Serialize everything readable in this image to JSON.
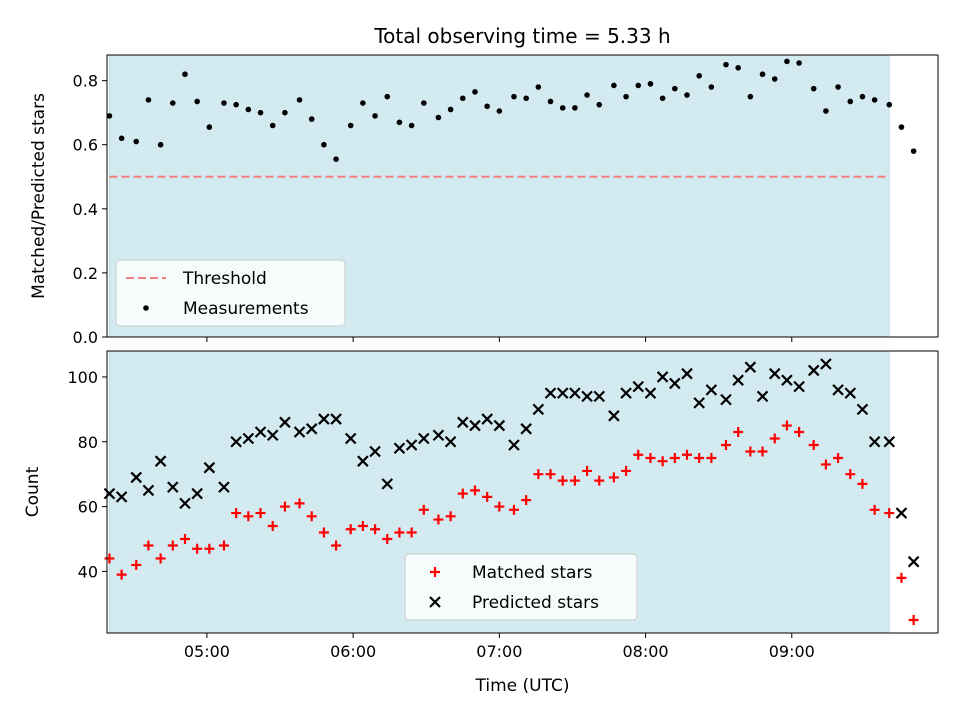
{
  "chart_data": [
    {
      "type": "scatter",
      "title": "Total observing time = 5.33 h",
      "xlabel": "",
      "ylabel": "Matched/Predicted stars",
      "ylim": [
        0,
        0.88
      ],
      "yticks": [
        0.0,
        0.2,
        0.4,
        0.6,
        0.8
      ],
      "ytick_labels": [
        "0.0",
        "0.2",
        "0.4",
        "0.6",
        "0.8"
      ],
      "xlim": [
        "04:29",
        "10:00"
      ],
      "observing_window": [
        "04:20",
        "09:40"
      ],
      "window_color": "#d3eaf0",
      "legend": {
        "placement": "lower-left",
        "entries": [
          {
            "label": "Threshold",
            "style": "dashed-line",
            "color": "#f08080"
          },
          {
            "label": "Measurements",
            "style": "dot",
            "color": "#000000"
          }
        ]
      },
      "threshold": {
        "name": "Threshold",
        "value": 0.5,
        "color": "#f08080"
      },
      "series": [
        {
          "name": "Measurements",
          "marker": "dot",
          "color": "#000000",
          "x": [
            "04:20",
            "04:25",
            "04:31",
            "04:36",
            "04:41",
            "04:46",
            "04:51",
            "04:56",
            "05:01",
            "05:07",
            "05:12",
            "05:17",
            "05:22",
            "05:27",
            "05:32",
            "05:38",
            "05:43",
            "05:48",
            "05:53",
            "05:59",
            "06:04",
            "06:09",
            "06:14",
            "06:19",
            "06:24",
            "06:29",
            "06:35",
            "06:40",
            "06:45",
            "06:50",
            "06:55",
            "07:00",
            "07:06",
            "07:11",
            "07:16",
            "07:21",
            "07:26",
            "07:31",
            "07:36",
            "07:41",
            "07:47",
            "07:52",
            "07:57",
            "08:02",
            "08:07",
            "08:12",
            "08:17",
            "08:22",
            "08:27",
            "08:33",
            "08:38",
            "08:43",
            "08:48",
            "08:53",
            "08:58",
            "09:03",
            "09:09",
            "09:14",
            "09:19",
            "09:24",
            "09:29",
            "09:34",
            "09:40"
          ],
          "y": [
            0.69,
            0.62,
            0.61,
            0.74,
            0.6,
            0.73,
            0.82,
            0.735,
            0.655,
            0.73,
            0.725,
            0.71,
            0.7,
            0.66,
            0.7,
            0.74,
            0.68,
            0.6,
            0.555,
            0.66,
            0.73,
            0.69,
            0.75,
            0.67,
            0.66,
            0.73,
            0.685,
            0.71,
            0.745,
            0.765,
            0.72,
            0.705,
            0.75,
            0.745,
            0.78,
            0.735,
            0.715,
            0.715,
            0.755,
            0.725,
            0.785,
            0.75,
            0.785,
            0.79,
            0.745,
            0.775,
            0.755,
            0.815,
            0.78,
            0.85,
            0.84,
            0.75,
            0.82,
            0.805,
            0.86,
            0.855,
            0.775,
            0.705,
            0.78,
            0.735,
            0.75,
            0.74,
            0.725
          ]
        },
        {
          "name": "Measurements",
          "marker": "dot",
          "color": "#000000",
          "x": [
            "09:45",
            "09:50"
          ],
          "y": [
            0.655,
            0.58
          ]
        }
      ]
    },
    {
      "type": "scatter",
      "title": "",
      "xlabel": "Time (UTC)",
      "ylabel": "Count",
      "ylim": [
        21,
        108
      ],
      "yticks": [
        40,
        60,
        80,
        100
      ],
      "ytick_labels": [
        "40",
        "60",
        "80",
        "100"
      ],
      "xlim": [
        "04:29",
        "10:00"
      ],
      "xticks": [
        "05:00",
        "06:00",
        "07:00",
        "08:00",
        "09:00"
      ],
      "xtick_labels": [
        "05:00",
        "06:00",
        "07:00",
        "08:00",
        "09:00"
      ],
      "observing_window": [
        "04:20",
        "09:40"
      ],
      "window_color": "#d3eaf0",
      "legend": {
        "placement": "lower-center",
        "entries": [
          {
            "label": "Matched stars",
            "style": "plus",
            "color": "#ff0000"
          },
          {
            "label": "Predicted stars",
            "style": "cross",
            "color": "#000000"
          }
        ]
      },
      "series": [
        {
          "name": "Matched stars",
          "marker": "plus",
          "color": "#ff0000",
          "x": [
            "04:20",
            "04:25",
            "04:31",
            "04:36",
            "04:41",
            "04:46",
            "04:51",
            "04:56",
            "05:01",
            "05:07",
            "05:12",
            "05:17",
            "05:22",
            "05:27",
            "05:32",
            "05:38",
            "05:43",
            "05:48",
            "05:53",
            "05:59",
            "06:04",
            "06:09",
            "06:14",
            "06:19",
            "06:24",
            "06:29",
            "06:35",
            "06:40",
            "06:45",
            "06:50",
            "06:55",
            "07:00",
            "07:06",
            "07:11",
            "07:16",
            "07:21",
            "07:26",
            "07:31",
            "07:36",
            "07:41",
            "07:47",
            "07:52",
            "07:57",
            "08:02",
            "08:07",
            "08:12",
            "08:17",
            "08:22",
            "08:27",
            "08:33",
            "08:38",
            "08:43",
            "08:48",
            "08:53",
            "08:58",
            "09:03",
            "09:09",
            "09:14",
            "09:19",
            "09:24",
            "09:29",
            "09:34",
            "09:40",
            "09:45",
            "09:50"
          ],
          "y": [
            44,
            39,
            42,
            48,
            44,
            48,
            50,
            47,
            47,
            48,
            58,
            57,
            58,
            54,
            60,
            61,
            57,
            52,
            48,
            53,
            54,
            53,
            50,
            52,
            52,
            59,
            56,
            57,
            64,
            65,
            63,
            60,
            59,
            62,
            70,
            70,
            68,
            68,
            71,
            68,
            69,
            71,
            76,
            75,
            74,
            75,
            76,
            75,
            75,
            79,
            83,
            77,
            77,
            81,
            85,
            83,
            79,
            73,
            75,
            70,
            67,
            59,
            58,
            38,
            25
          ]
        },
        {
          "name": "Predicted stars",
          "marker": "cross",
          "color": "#000000",
          "x": [
            "04:20",
            "04:25",
            "04:31",
            "04:36",
            "04:41",
            "04:46",
            "04:51",
            "04:56",
            "05:01",
            "05:07",
            "05:12",
            "05:17",
            "05:22",
            "05:27",
            "05:32",
            "05:38",
            "05:43",
            "05:48",
            "05:53",
            "05:59",
            "06:04",
            "06:09",
            "06:14",
            "06:19",
            "06:24",
            "06:29",
            "06:35",
            "06:40",
            "06:45",
            "06:50",
            "06:55",
            "07:00",
            "07:06",
            "07:11",
            "07:16",
            "07:21",
            "07:26",
            "07:31",
            "07:36",
            "07:41",
            "07:47",
            "07:52",
            "07:57",
            "08:02",
            "08:07",
            "08:12",
            "08:17",
            "08:22",
            "08:27",
            "08:33",
            "08:38",
            "08:43",
            "08:48",
            "08:53",
            "08:58",
            "09:03",
            "09:09",
            "09:14",
            "09:19",
            "09:24",
            "09:29",
            "09:34",
            "09:40",
            "09:45",
            "09:50"
          ],
          "y": [
            64,
            63,
            69,
            65,
            74,
            66,
            61,
            64,
            72,
            66,
            80,
            81,
            83,
            82,
            86,
            83,
            84,
            87,
            87,
            81,
            74,
            77,
            67,
            78,
            79,
            81,
            82,
            80,
            86,
            85,
            87,
            85,
            79,
            84,
            90,
            95,
            95,
            95,
            94,
            94,
            88,
            95,
            97,
            95,
            100,
            98,
            101,
            92,
            96,
            93,
            99,
            103,
            94,
            101,
            99,
            97,
            102,
            104,
            96,
            95,
            90,
            80,
            80,
            58,
            43
          ]
        }
      ]
    }
  ]
}
